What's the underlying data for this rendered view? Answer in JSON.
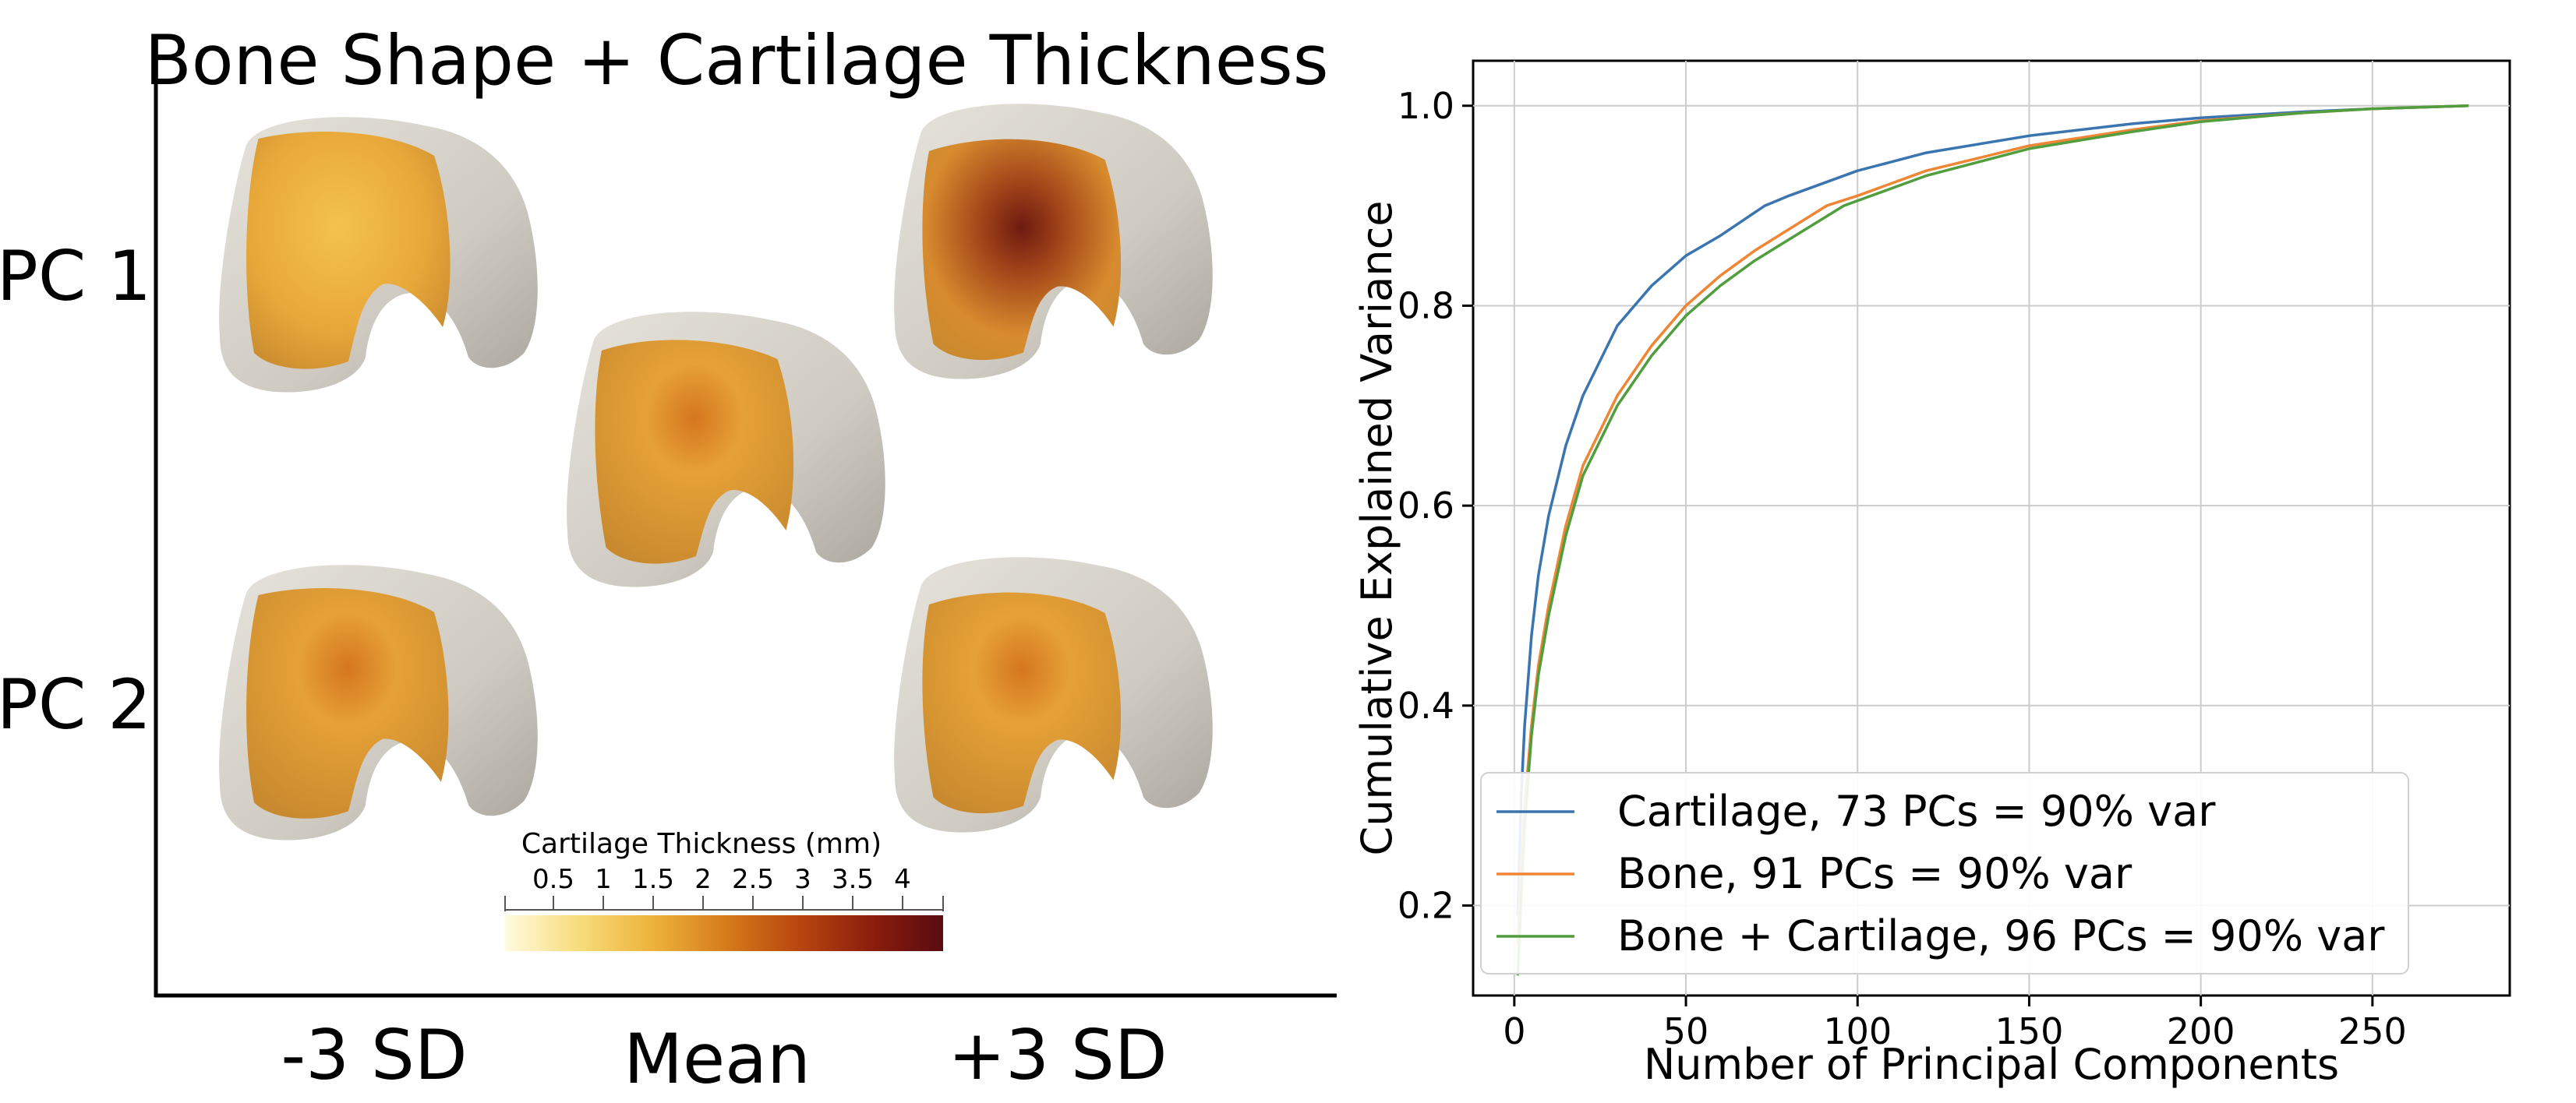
{
  "figure_left": {
    "title": "Bone Shape + Cartilage Thickness",
    "title_color": "#4a8c2a",
    "row_labels": [
      "PC 1",
      "PC 2"
    ],
    "column_labels": [
      "-3 SD",
      "Mean",
      "+3 SD"
    ],
    "colorbar": {
      "title": "Cartilage Thickness (mm)",
      "ticks": [
        "0.5",
        "1",
        "1.5",
        "2",
        "2.5",
        "3",
        "3.5",
        "4"
      ],
      "colors": [
        "#fffbe0",
        "#f7dc7a",
        "#edb23a",
        "#d67d1c",
        "#b8460f",
        "#8a1d0c",
        "#5a0b12"
      ]
    }
  },
  "chart_data": {
    "type": "line",
    "title": "",
    "xlabel": "Number of Principal Components",
    "ylabel": "Cumulative Explained Variance",
    "xlim": [
      -12,
      290
    ],
    "ylim": [
      0.11,
      1.045
    ],
    "xticks": [
      0,
      50,
      100,
      150,
      200,
      250
    ],
    "yticks": [
      0.2,
      0.4,
      0.6,
      0.8,
      1.0
    ],
    "ytick_labels": [
      "0.2",
      "0.4",
      "0.6",
      "0.8",
      "1.0"
    ],
    "grid": true,
    "legend_position": "lower-right",
    "series": [
      {
        "name": "Cartilage, 73 PCs = 90% var",
        "color": "#3b75af",
        "x": [
          1,
          2,
          3,
          5,
          7,
          10,
          15,
          20,
          30,
          40,
          50,
          60,
          73,
          80,
          100,
          120,
          150,
          180,
          200,
          230,
          250,
          278
        ],
        "y": [
          0.19,
          0.31,
          0.38,
          0.47,
          0.53,
          0.59,
          0.66,
          0.71,
          0.78,
          0.82,
          0.85,
          0.87,
          0.9,
          0.91,
          0.935,
          0.953,
          0.97,
          0.982,
          0.988,
          0.994,
          0.997,
          1.0
        ]
      },
      {
        "name": "Bone, 91 PCs = 90% var",
        "color": "#ef8636",
        "x": [
          1,
          2,
          3,
          5,
          7,
          10,
          15,
          20,
          30,
          40,
          50,
          60,
          70,
          91,
          100,
          120,
          150,
          180,
          200,
          230,
          250,
          278
        ],
        "y": [
          0.16,
          0.24,
          0.3,
          0.38,
          0.44,
          0.5,
          0.58,
          0.64,
          0.71,
          0.76,
          0.8,
          0.83,
          0.855,
          0.9,
          0.91,
          0.935,
          0.96,
          0.976,
          0.985,
          0.993,
          0.997,
          1.0
        ]
      },
      {
        "name": "Bone + Cartilage, 96 PCs = 90% var",
        "color": "#519e3e",
        "x": [
          1,
          2,
          3,
          5,
          7,
          10,
          15,
          20,
          30,
          40,
          50,
          60,
          70,
          96,
          100,
          120,
          150,
          180,
          200,
          230,
          250,
          278
        ],
        "y": [
          0.13,
          0.21,
          0.28,
          0.37,
          0.43,
          0.49,
          0.57,
          0.63,
          0.7,
          0.75,
          0.79,
          0.82,
          0.845,
          0.9,
          0.905,
          0.93,
          0.957,
          0.974,
          0.984,
          0.993,
          0.997,
          1.0
        ]
      }
    ]
  }
}
